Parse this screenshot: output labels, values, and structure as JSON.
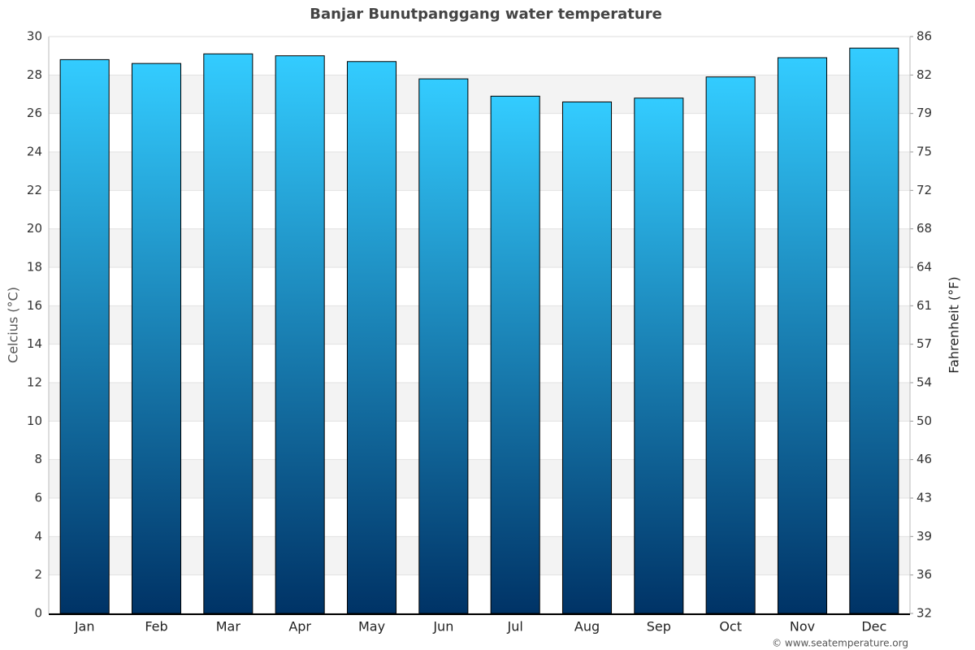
{
  "chart_data": {
    "type": "bar",
    "title": "Banjar Bunutpanggang water temperature",
    "categories": [
      "Jan",
      "Feb",
      "Mar",
      "Apr",
      "May",
      "Jun",
      "Jul",
      "Aug",
      "Sep",
      "Oct",
      "Nov",
      "Dec"
    ],
    "values": [
      28.8,
      28.6,
      29.1,
      29.0,
      28.7,
      27.8,
      26.9,
      26.6,
      26.8,
      27.9,
      28.9,
      29.4
    ],
    "gradient": [
      "#33ccff",
      "#003366"
    ],
    "ylabel": "Celcius (°C)",
    "y2label": "Fahrenheit (°F)",
    "ylim": [
      0,
      30
    ],
    "yticks": [
      0,
      2,
      4,
      6,
      8,
      10,
      12,
      14,
      16,
      18,
      20,
      22,
      24,
      26,
      28,
      30
    ],
    "y2lim": [
      32,
      86
    ],
    "y2ticks": [
      32,
      {
        "value": 35.6,
        "label": "36"
      },
      {
        "value": 39.2,
        "label": "39"
      },
      {
        "value": 42.8,
        "label": "43"
      },
      {
        "value": 46.4,
        "label": "46"
      },
      50,
      {
        "value": 53.6,
        "label": "54"
      },
      {
        "value": 57.2,
        "label": "57"
      },
      {
        "value": 60.8,
        "label": "61"
      },
      {
        "value": 64.4,
        "label": "64"
      },
      68,
      {
        "value": 71.6,
        "label": "72"
      },
      {
        "value": 75.2,
        "label": "75"
      },
      {
        "value": 78.8,
        "label": "79"
      },
      {
        "value": 82.4,
        "label": "82"
      },
      86
    ],
    "grid": true,
    "credit": "© www.seatemperature.org"
  }
}
